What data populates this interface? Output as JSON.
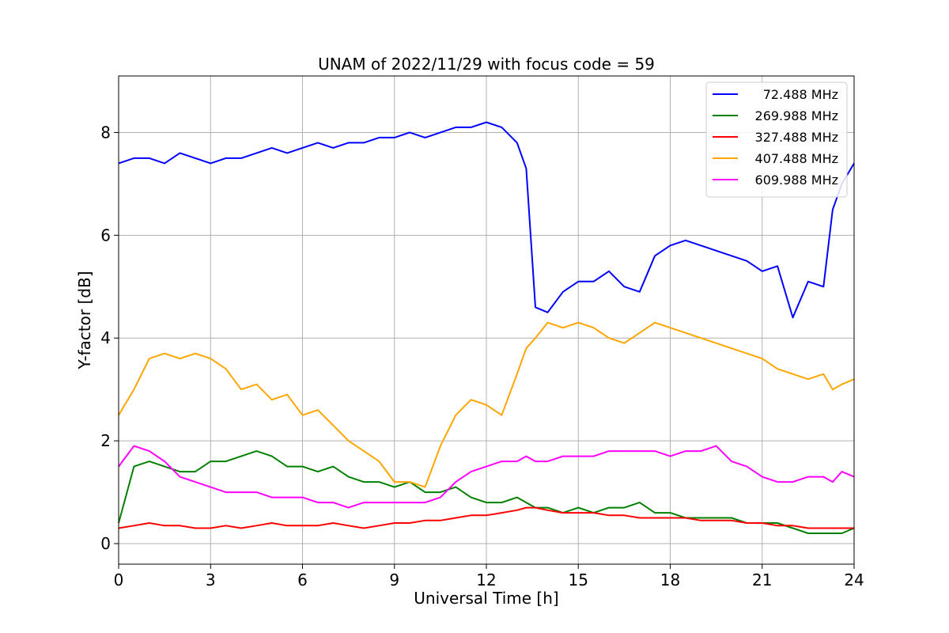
{
  "chart_data": {
    "type": "line",
    "title": "UNAM of 2022/11/29 with focus code = 59",
    "xlabel": "Universal Time [h]",
    "ylabel": "Y-factor [dB]",
    "xlim": [
      0,
      24
    ],
    "ylim": [
      -0.4,
      9.1
    ],
    "xticks": [
      0,
      3,
      6,
      9,
      12,
      15,
      18,
      21,
      24
    ],
    "yticks": [
      0,
      2,
      4,
      6,
      8
    ],
    "grid": true,
    "legend_position": "top-right",
    "x": [
      0,
      0.5,
      1,
      1.5,
      2,
      2.5,
      3,
      3.5,
      4,
      4.5,
      5,
      5.5,
      6,
      6.5,
      7,
      7.5,
      8,
      8.5,
      9,
      9.5,
      10,
      10.5,
      11,
      11.5,
      12,
      12.5,
      13,
      13.3,
      13.6,
      14,
      14.5,
      15,
      15.5,
      16,
      16.5,
      17,
      17.5,
      18,
      18.5,
      19,
      19.5,
      20,
      20.5,
      21,
      21.5,
      22,
      22.5,
      23,
      23.3,
      23.6,
      24
    ],
    "series": [
      {
        "name": " 72.488 MHz",
        "color": "#0000ff",
        "values": [
          7.4,
          7.5,
          7.5,
          7.4,
          7.6,
          7.5,
          7.4,
          7.5,
          7.5,
          7.6,
          7.7,
          7.6,
          7.7,
          7.8,
          7.7,
          7.8,
          7.8,
          7.9,
          7.9,
          8.0,
          7.9,
          8.0,
          8.1,
          8.1,
          8.2,
          8.1,
          7.8,
          7.3,
          4.6,
          4.5,
          4.9,
          5.1,
          5.1,
          5.3,
          5.0,
          4.9,
          5.6,
          5.8,
          5.9,
          5.8,
          5.7,
          5.6,
          5.5,
          5.3,
          5.4,
          4.4,
          5.1,
          5.0,
          6.5,
          7.0,
          7.4
        ]
      },
      {
        "name": "269.988 MHz",
        "color": "#008000",
        "values": [
          0.4,
          1.5,
          1.6,
          1.5,
          1.4,
          1.4,
          1.6,
          1.6,
          1.7,
          1.8,
          1.7,
          1.5,
          1.5,
          1.4,
          1.5,
          1.3,
          1.2,
          1.2,
          1.1,
          1.2,
          1.0,
          1.0,
          1.1,
          0.9,
          0.8,
          0.8,
          0.9,
          0.8,
          0.7,
          0.7,
          0.6,
          0.7,
          0.6,
          0.7,
          0.7,
          0.8,
          0.6,
          0.6,
          0.5,
          0.5,
          0.5,
          0.5,
          0.4,
          0.4,
          0.4,
          0.3,
          0.2,
          0.2,
          0.2,
          0.2,
          0.3
        ]
      },
      {
        "name": "327.488 MHz",
        "color": "#ff0000",
        "values": [
          0.3,
          0.35,
          0.4,
          0.35,
          0.35,
          0.3,
          0.3,
          0.35,
          0.3,
          0.35,
          0.4,
          0.35,
          0.35,
          0.35,
          0.4,
          0.35,
          0.3,
          0.35,
          0.4,
          0.4,
          0.45,
          0.45,
          0.5,
          0.55,
          0.55,
          0.6,
          0.65,
          0.7,
          0.7,
          0.65,
          0.6,
          0.6,
          0.6,
          0.55,
          0.55,
          0.5,
          0.5,
          0.5,
          0.5,
          0.45,
          0.45,
          0.45,
          0.4,
          0.4,
          0.35,
          0.35,
          0.3,
          0.3,
          0.3,
          0.3,
          0.3
        ]
      },
      {
        "name": "407.488 MHz",
        "color": "#ffa500",
        "values": [
          2.5,
          3.0,
          3.6,
          3.7,
          3.6,
          3.7,
          3.6,
          3.4,
          3.0,
          3.1,
          2.8,
          2.9,
          2.5,
          2.6,
          2.3,
          2.0,
          1.8,
          1.6,
          1.2,
          1.2,
          1.1,
          1.9,
          2.5,
          2.8,
          2.7,
          2.5,
          3.3,
          3.8,
          4.0,
          4.3,
          4.2,
          4.3,
          4.2,
          4.0,
          3.9,
          4.1,
          4.3,
          4.2,
          4.1,
          4.0,
          3.9,
          3.8,
          3.7,
          3.6,
          3.4,
          3.3,
          3.2,
          3.3,
          3.0,
          3.1,
          3.2
        ]
      },
      {
        "name": "609.988 MHz",
        "color": "#ff00ff",
        "values": [
          1.5,
          1.9,
          1.8,
          1.6,
          1.3,
          1.2,
          1.1,
          1.0,
          1.0,
          1.0,
          0.9,
          0.9,
          0.9,
          0.8,
          0.8,
          0.7,
          0.8,
          0.8,
          0.8,
          0.8,
          0.8,
          0.9,
          1.2,
          1.4,
          1.5,
          1.6,
          1.6,
          1.7,
          1.6,
          1.6,
          1.7,
          1.7,
          1.7,
          1.8,
          1.8,
          1.8,
          1.8,
          1.7,
          1.8,
          1.8,
          1.9,
          1.6,
          1.5,
          1.3,
          1.2,
          1.2,
          1.3,
          1.3,
          1.2,
          1.4,
          1.3
        ]
      }
    ]
  }
}
